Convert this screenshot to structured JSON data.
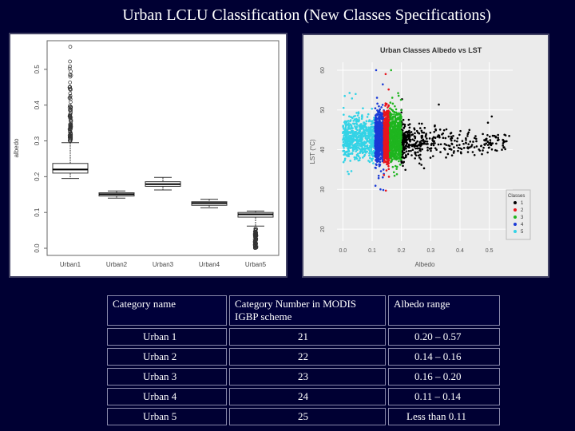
{
  "slide": {
    "title": "Urban LCLU Classification (New Classes Specifications)"
  },
  "chart_data": [
    {
      "type": "box",
      "ylabel": "albedo",
      "categories": [
        "Urban1",
        "Urban2",
        "Urban3",
        "Urban4",
        "Urban5"
      ],
      "yticks": [
        "0.0",
        "0.1",
        "0.2",
        "0.3",
        "0.4",
        "0.5"
      ],
      "ylim": [
        -0.02,
        0.58
      ],
      "boxes": [
        {
          "min": 0.195,
          "q1": 0.21,
          "median": 0.22,
          "q3": 0.237,
          "max": 0.295,
          "outliers_from": 0.3,
          "outliers_to": 0.565
        },
        {
          "min": 0.14,
          "q1": 0.146,
          "median": 0.151,
          "q3": 0.155,
          "max": 0.16
        },
        {
          "min": 0.163,
          "q1": 0.173,
          "median": 0.179,
          "q3": 0.186,
          "max": 0.198
        },
        {
          "min": 0.113,
          "q1": 0.12,
          "median": 0.126,
          "q3": 0.13,
          "max": 0.137
        },
        {
          "min": 0.062,
          "q1": 0.087,
          "median": 0.095,
          "q3": 0.1,
          "max": 0.104,
          "outliers_from": 0.0,
          "outliers_to": 0.055
        }
      ]
    },
    {
      "type": "scatter",
      "title": "Urban Classes Albedo vs LST",
      "xlabel": "Albedo",
      "ylabel": "LST (°C)",
      "xticks": [
        "0.0",
        "0.1",
        "0.2",
        "0.3",
        "0.4",
        "0.5"
      ],
      "yticks": [
        "20",
        "30",
        "40",
        "50",
        "60"
      ],
      "xlim": [
        -0.02,
        0.58
      ],
      "ylim": [
        17,
        62
      ],
      "legend": {
        "title": "Classes",
        "position": "bottom-right",
        "entries": [
          "1",
          "2",
          "3",
          "4",
          "5"
        ]
      },
      "series": [
        {
          "name": "1",
          "color": "#000000",
          "x_range": [
            0.2,
            0.57
          ],
          "y_center": 42,
          "y_spread": 5
        },
        {
          "name": "2",
          "color": "#e8141c",
          "x_range": [
            0.14,
            0.16
          ],
          "y_center": 43,
          "y_spread": 6
        },
        {
          "name": "3",
          "color": "#1fb51f",
          "x_range": [
            0.16,
            0.2
          ],
          "y_center": 43,
          "y_spread": 6
        },
        {
          "name": "4",
          "color": "#1a3ad6",
          "x_range": [
            0.11,
            0.14
          ],
          "y_center": 43,
          "y_spread": 6
        },
        {
          "name": "5",
          "color": "#33d3e6",
          "x_range": [
            0.0,
            0.11
          ],
          "y_center": 43,
          "y_spread": 5
        }
      ]
    }
  ],
  "table": {
    "headers": [
      "Category name",
      "Category Number in MODIS IGBP scheme",
      "Albedo range"
    ],
    "rows": [
      [
        "Urban 1",
        "21",
        "0.20 – 0.57"
      ],
      [
        "Urban 2",
        "22",
        "0.14 – 0.16"
      ],
      [
        "Urban 3",
        "23",
        "0.16 – 0.20"
      ],
      [
        "Urban 4",
        "24",
        "0.11 – 0.14"
      ],
      [
        "Urban 5",
        "25",
        "Less than 0.11"
      ]
    ]
  }
}
